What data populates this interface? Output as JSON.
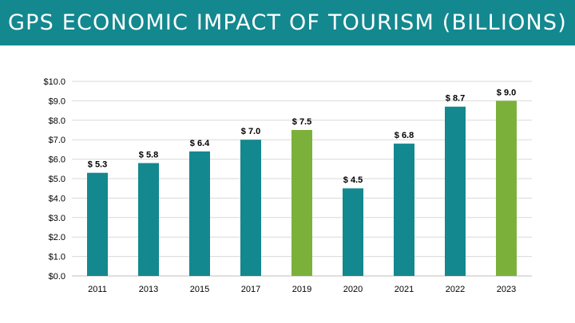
{
  "title": "GPS ECONOMIC IMPACT OF TOURISM (BILLIONS)",
  "colors": {
    "header_bg": "#13888f",
    "bar_teal": "#13888f",
    "bar_green": "#7bb13a",
    "gridline": "#d9d9d9",
    "text": "#000000"
  },
  "chart_data": {
    "type": "bar",
    "title": "",
    "xlabel": "",
    "ylabel": "",
    "categories": [
      "2011",
      "2013",
      "2015",
      "2017",
      "2019",
      "2020",
      "2021",
      "2022",
      "2023"
    ],
    "values": [
      5.3,
      5.8,
      6.4,
      7.0,
      7.5,
      4.5,
      6.8,
      8.7,
      9.0
    ],
    "data_labels": [
      "$ 5.3",
      "$ 5.8",
      "$ 6.4",
      "$ 7.0",
      "$ 7.5",
      "$ 4.5",
      "$ 6.8",
      "$ 8.7",
      "$ 9.0"
    ],
    "bar_colors": [
      "teal",
      "teal",
      "teal",
      "teal",
      "green",
      "teal",
      "teal",
      "teal",
      "green"
    ],
    "ylim": [
      0,
      10
    ],
    "y_ticks": [
      0,
      1,
      2,
      3,
      4,
      5,
      6,
      7,
      8,
      9,
      10
    ],
    "y_tick_labels": [
      "$0.0",
      "$1.0",
      "$2.0",
      "$3.0",
      "$4.0",
      "$5.0",
      "$6.0",
      "$7.0",
      "$8.0",
      "$9.0",
      "$10.0"
    ],
    "grid": true,
    "legend": "none"
  }
}
